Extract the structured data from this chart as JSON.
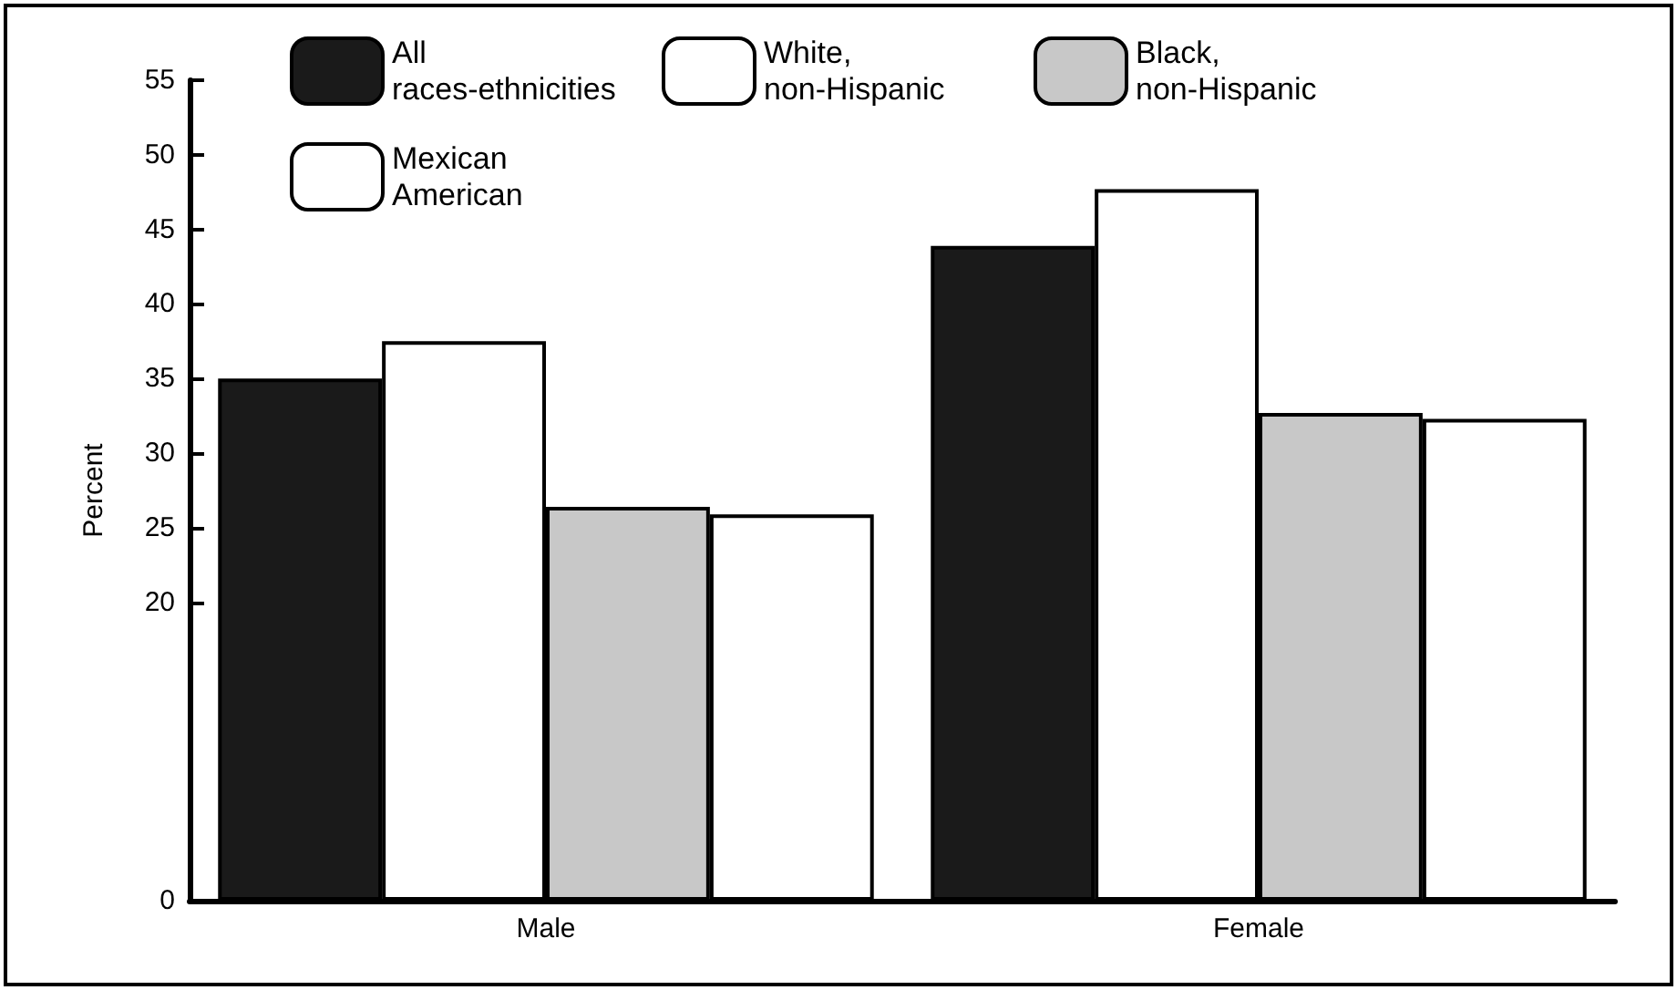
{
  "chart_data": {
    "type": "bar",
    "ylabel": "Percent",
    "categories": [
      "Male",
      "Female"
    ],
    "series": [
      {
        "name": "All races-ethnicities",
        "color": "#1a1a1a",
        "values": [
          35.0,
          43.9
        ]
      },
      {
        "name": "White, non-Hispanic",
        "color": "#ffffff",
        "values": [
          37.5,
          47.7
        ]
      },
      {
        "name": "Black, non-Hispanic",
        "color": "#c8c8c8",
        "values": [
          26.4,
          32.7
        ]
      },
      {
        "name": "Mexican American",
        "color": "#ffffff",
        "values": [
          25.9,
          32.3
        ]
      }
    ],
    "ylim": [
      0,
      55
    ],
    "yticks": [
      0,
      20,
      25,
      30,
      35,
      40,
      45,
      50,
      55
    ],
    "grid": false,
    "legend": "top"
  }
}
